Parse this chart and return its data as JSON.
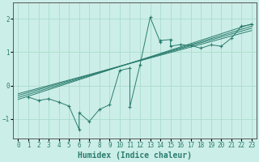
{
  "xlabel": "Humidex (Indice chaleur)",
  "bg_color": "#cceee8",
  "grid_color": "#aaddcc",
  "line_color": "#2a7d6e",
  "xlim": [
    -0.5,
    23.5
  ],
  "ylim": [
    -1.6,
    2.5
  ],
  "xticks": [
    0,
    1,
    2,
    3,
    4,
    5,
    6,
    7,
    8,
    9,
    10,
    11,
    12,
    13,
    14,
    15,
    16,
    17,
    18,
    19,
    20,
    21,
    22,
    23
  ],
  "yticks": [
    -1,
    0,
    1,
    2
  ],
  "scatter_x": [
    1,
    2,
    3,
    4,
    5,
    6,
    6,
    7,
    8,
    9,
    10,
    11,
    11,
    12,
    13,
    14,
    14,
    15,
    15,
    16,
    17,
    18,
    19,
    20,
    21,
    22,
    23
  ],
  "scatter_y": [
    -0.35,
    -0.45,
    -0.4,
    -0.5,
    -0.62,
    -1.32,
    -0.82,
    -1.08,
    -0.72,
    -0.58,
    0.45,
    0.52,
    -0.65,
    0.62,
    2.05,
    1.3,
    1.35,
    1.38,
    1.18,
    1.23,
    1.2,
    1.12,
    1.22,
    1.18,
    1.42,
    1.78,
    1.83
  ],
  "line1_x": [
    0,
    23
  ],
  "line1_y": [
    -0.42,
    1.85
  ],
  "line2_x": [
    0,
    23
  ],
  "line2_y": [
    -0.36,
    1.78
  ],
  "line3_x": [
    0,
    23
  ],
  "line3_y": [
    -0.3,
    1.72
  ],
  "line4_x": [
    0,
    23
  ],
  "line4_y": [
    -0.25,
    1.65
  ],
  "tick_fontsize": 5.5,
  "xlabel_fontsize": 7
}
